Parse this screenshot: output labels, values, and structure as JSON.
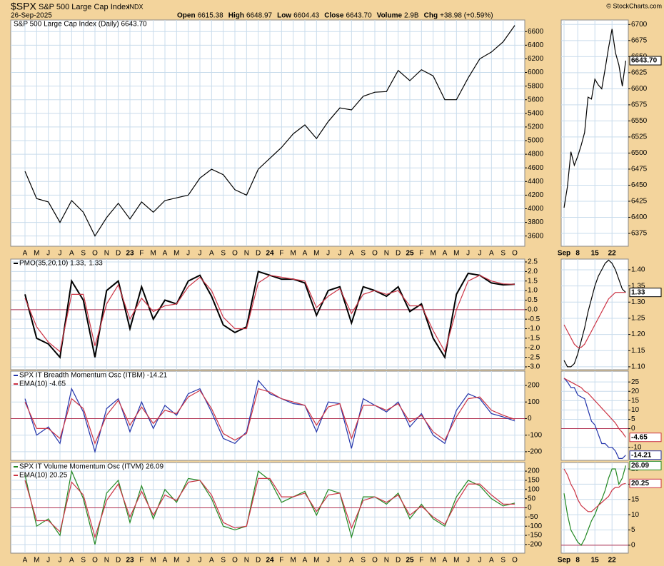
{
  "header": {
    "symbol": "$SPX",
    "name": "S&P 500 Large Cap Index",
    "exchange": "INDX",
    "date": "26-Sep-2025",
    "quote": [
      [
        "Open",
        "6615.38"
      ],
      [
        "High",
        "6648.97"
      ],
      [
        "Low",
        "6604.43"
      ],
      [
        "Close",
        "6643.70"
      ],
      [
        "Volume",
        "2.9B"
      ],
      [
        "Chg",
        "+38.98 (+0.59%)"
      ]
    ],
    "credit": "© StockCharts.com"
  },
  "chart_data": [
    {
      "type": "line",
      "grid": true,
      "categories": [
        "A",
        "M",
        "J",
        "J",
        "A",
        "S",
        "O",
        "N",
        "D",
        "23",
        "F",
        "M",
        "A",
        "M",
        "J",
        "J",
        "A",
        "S",
        "O",
        "N",
        "D",
        "24",
        "F",
        "M",
        "A",
        "M",
        "J",
        "J",
        "A",
        "S",
        "O",
        "N",
        "D",
        "25",
        "F",
        "M",
        "A",
        "M",
        "J",
        "J",
        "A",
        "S",
        "O"
      ],
      "series": [
        {
          "name": "S&P 500 Large Cap Index (Daily) 6643.70",
          "color": "#000000",
          "values": [
            4550,
            4150,
            4100,
            3800,
            4120,
            3950,
            3600,
            3870,
            4080,
            3850,
            4100,
            3950,
            4120,
            4160,
            4200,
            4450,
            4580,
            4500,
            4280,
            4200,
            4580,
            4740,
            4900,
            5100,
            5230,
            5030,
            5280,
            5480,
            5450,
            5650,
            5710,
            5720,
            6030,
            5880,
            6040,
            5950,
            5600,
            5600,
            5920,
            6200,
            6300,
            6450,
            6690
          ]
        }
      ],
      "ylim": [
        3450,
        6770
      ],
      "yticks": [
        3600,
        3800,
        4000,
        4200,
        4400,
        4600,
        4800,
        5000,
        5200,
        5400,
        5600,
        5800,
        6000,
        6200,
        6400,
        6600
      ]
    },
    {
      "type": "line",
      "grid": true,
      "categories": [
        "Sep",
        null,
        null,
        null,
        "8",
        null,
        null,
        null,
        null,
        "15",
        null,
        null,
        null,
        null,
        "22",
        null,
        null,
        null,
        null
      ],
      "series": [
        {
          "color": "#000000",
          "values": [
            6415,
            6448,
            6502,
            6481,
            6495,
            6512,
            6532,
            6587,
            6584,
            6615,
            6606,
            6600,
            6631,
            6664,
            6693,
            6656,
            6637,
            6604,
            6643.7
          ],
          "value_labels": [
            null,
            null,
            null,
            null,
            null,
            null,
            null,
            null,
            null,
            null,
            null,
            null,
            null,
            null,
            null,
            null,
            null,
            null,
            "6643.70"
          ]
        }
      ],
      "ylim": [
        6355,
        6707
      ],
      "yticks": [
        6375,
        6400,
        6425,
        6450,
        6475,
        6500,
        6525,
        6550,
        6575,
        6600,
        6625,
        6650,
        6675,
        6700
      ]
    },
    {
      "type": "line",
      "grid": true,
      "series": [
        {
          "name": "PMO(35,20,10) 1.33,",
          "color": "#000000",
          "values": [
            0.8,
            -1.5,
            -1.8,
            -2.5,
            1.5,
            0.5,
            -2.5,
            1.0,
            1.5,
            -1.0,
            1.2,
            -0.5,
            0.5,
            0.3,
            1.5,
            1.8,
            0.7,
            -0.8,
            -1.2,
            -0.9,
            2.0,
            1.8,
            1.6,
            1.6,
            1.4,
            -0.3,
            1.0,
            1.2,
            -0.7,
            1.2,
            1.0,
            0.7,
            1.2,
            -0.1,
            0.3,
            -1.5,
            -2.5,
            0.8,
            1.9,
            1.8,
            1.4,
            1.3,
            1.33
          ]
        },
        {
          "name": "1.33",
          "color": "#cc3344",
          "values": [
            0.6,
            -0.9,
            -1.7,
            -2.2,
            0.8,
            0.8,
            -1.9,
            0.3,
            1.3,
            -0.5,
            0.6,
            -0.1,
            0.2,
            0.3,
            1.2,
            1.7,
            1.0,
            -0.4,
            -1.0,
            -1.0,
            1.4,
            1.8,
            1.7,
            1.6,
            1.5,
            0.1,
            0.7,
            1.1,
            -0.2,
            0.8,
            1.0,
            0.8,
            1.0,
            0.2,
            0.2,
            -1.1,
            -2.2,
            0.0,
            1.5,
            1.8,
            1.5,
            1.35,
            1.33
          ]
        }
      ],
      "ylim": [
        -3.15,
        2.65
      ],
      "yticks": [
        {
          "value": -3,
          "label": "-3.0"
        },
        -2.5,
        {
          "value": -2,
          "label": "-2.0"
        },
        -1.5,
        {
          "value": -1,
          "label": "-1.0"
        },
        -0.5,
        {
          "value": 0,
          "label": "0.0"
        },
        0.5,
        {
          "value": 1,
          "label": "1.0"
        },
        1.5,
        {
          "value": 2,
          "label": "2.0"
        },
        2.5
      ]
    },
    {
      "type": "line",
      "grid": true,
      "series": [
        {
          "color": "#000000",
          "values": [
            1.12,
            1.1,
            1.1,
            1.11,
            1.14,
            1.18,
            1.22,
            1.27,
            1.31,
            1.35,
            1.38,
            1.4,
            1.42,
            1.43,
            1.42,
            1.4,
            1.37,
            1.34,
            1.33
          ],
          "value_labels": [
            null,
            null,
            null,
            null,
            null,
            null,
            null,
            null,
            null,
            null,
            null,
            null,
            null,
            null,
            null,
            null,
            null,
            null,
            "1.33"
          ]
        },
        {
          "color": "#cc3344",
          "values": [
            1.23,
            1.21,
            1.19,
            1.17,
            1.16,
            1.16,
            1.17,
            1.19,
            1.21,
            1.23,
            1.25,
            1.27,
            1.29,
            1.31,
            1.32,
            1.33,
            1.33,
            1.33,
            1.33
          ]
        }
      ],
      "ylim": [
        1.091,
        1.433
      ],
      "yticks": [
        {
          "value": 1.1,
          "label": "1.10"
        },
        1.15,
        {
          "value": 1.2,
          "label": "1.20"
        },
        1.25,
        {
          "value": 1.3,
          "label": "1.30"
        },
        1.35,
        {
          "value": 1.4,
          "label": "1.40"
        }
      ]
    },
    {
      "type": "line",
      "grid": true,
      "series": [
        {
          "name": "SPX IT Breadth Momentum Osc (ITBM) -14.21",
          "color": "#2233aa",
          "values": [
            120,
            -100,
            -50,
            -150,
            180,
            40,
            -200,
            60,
            120,
            -80,
            100,
            -60,
            80,
            20,
            150,
            180,
            40,
            -120,
            -150,
            -80,
            230,
            150,
            120,
            90,
            80,
            -80,
            100,
            90,
            -180,
            120,
            80,
            40,
            100,
            -50,
            30,
            -100,
            -150,
            50,
            150,
            120,
            30,
            10,
            -14.21
          ]
        },
        {
          "name": "EMA(10) -4.65",
          "color": "#cc3344",
          "values": [
            100,
            -60,
            -60,
            -120,
            120,
            60,
            -150,
            20,
            110,
            -40,
            70,
            -30,
            50,
            30,
            130,
            170,
            60,
            -90,
            -130,
            -90,
            180,
            160,
            120,
            100,
            80,
            -40,
            70,
            90,
            -120,
            80,
            80,
            50,
            90,
            -20,
            20,
            -80,
            -130,
            10,
            120,
            130,
            50,
            20,
            -4.65
          ]
        }
      ],
      "ylim": [
        -252,
        286
      ],
      "yticks": [
        -200,
        -100,
        0,
        100,
        200
      ]
    },
    {
      "type": "line",
      "grid": true,
      "series": [
        {
          "color": "#2233aa",
          "values": [
            27,
            25,
            22,
            22,
            18,
            17,
            16,
            10,
            4,
            2,
            -3,
            -8,
            -8,
            -10,
            -10,
            -12,
            -16,
            -16,
            -14.21
          ],
          "value_labels": [
            null,
            null,
            null,
            null,
            null,
            null,
            null,
            null,
            null,
            null,
            null,
            null,
            null,
            null,
            null,
            null,
            null,
            null,
            "-14.21"
          ]
        },
        {
          "color": "#cc3344",
          "values": [
            27,
            26,
            25,
            24,
            23,
            22,
            20,
            19,
            17,
            15,
            13,
            11,
            9,
            7,
            5,
            3,
            0,
            -2,
            -4.65
          ],
          "value_labels": [
            null,
            null,
            null,
            null,
            null,
            null,
            null,
            null,
            null,
            null,
            null,
            null,
            null,
            null,
            null,
            null,
            null,
            null,
            "-4.65"
          ]
        }
      ],
      "ylim": [
        -17,
        30.8
      ],
      "yticks": [
        -10,
        0,
        5,
        10,
        15,
        20,
        25
      ]
    },
    {
      "type": "line",
      "grid": true,
      "categories": [
        "A",
        "M",
        "J",
        "J",
        "A",
        "S",
        "O",
        "N",
        "D",
        "23",
        "F",
        "M",
        "A",
        "M",
        "J",
        "J",
        "A",
        "S",
        "O",
        "N",
        "D",
        "24",
        "F",
        "M",
        "A",
        "M",
        "J",
        "J",
        "A",
        "S",
        "O",
        "N",
        "D",
        "25",
        "F",
        "M",
        "A",
        "M",
        "J",
        "J",
        "A",
        "S",
        "O"
      ],
      "series": [
        {
          "name": "SPX IT Volume Momentum Osc (ITVM) 26.09",
          "color": "#228822",
          "values": [
            180,
            -100,
            -60,
            -150,
            200,
            50,
            -200,
            80,
            150,
            -80,
            120,
            -60,
            100,
            30,
            160,
            150,
            50,
            -100,
            -120,
            -100,
            200,
            150,
            30,
            60,
            90,
            -40,
            100,
            80,
            -160,
            60,
            60,
            20,
            80,
            -60,
            20,
            -60,
            -100,
            60,
            150,
            120,
            50,
            10,
            26.09
          ]
        },
        {
          "name": "EMA(10) 20.25",
          "color": "#cc3344",
          "values": [
            150,
            -70,
            -70,
            -130,
            140,
            70,
            -160,
            40,
            130,
            -50,
            90,
            -40,
            70,
            40,
            140,
            150,
            70,
            -80,
            -110,
            -100,
            160,
            160,
            60,
            60,
            80,
            -20,
            70,
            80,
            -110,
            40,
            60,
            30,
            70,
            -40,
            10,
            -50,
            -90,
            30,
            130,
            130,
            70,
            20,
            20.25
          ]
        }
      ],
      "ylim": [
        -247,
        247
      ],
      "yticks": [
        -200,
        -150,
        -100,
        -50,
        0,
        50,
        100,
        150,
        200
      ]
    },
    {
      "type": "line",
      "grid": true,
      "categories": [
        "Sep",
        null,
        null,
        null,
        "8",
        null,
        null,
        null,
        null,
        "15",
        null,
        null,
        null,
        null,
        "22",
        null,
        null,
        null,
        null
      ],
      "series": [
        {
          "color": "#228822",
          "values": [
            17,
            10,
            5,
            3,
            1,
            0,
            2,
            5,
            8,
            10,
            13,
            15,
            18,
            22,
            25,
            25,
            20,
            22,
            26.09
          ],
          "value_labels": [
            null,
            null,
            null,
            null,
            null,
            null,
            null,
            null,
            null,
            null,
            null,
            null,
            null,
            null,
            null,
            null,
            null,
            null,
            "26.09"
          ]
        },
        {
          "color": "#cc3344",
          "values": [
            25,
            23,
            20,
            18,
            15,
            13,
            12,
            11,
            11,
            12,
            13,
            14,
            15,
            16,
            18,
            19,
            19,
            20,
            20.25
          ],
          "value_labels": [
            null,
            null,
            null,
            null,
            null,
            null,
            null,
            null,
            null,
            null,
            null,
            null,
            null,
            null,
            null,
            null,
            null,
            null,
            "20.25"
          ]
        }
      ],
      "ylim": [
        -2.6,
        27.1
      ],
      "yticks": [
        0,
        5,
        10,
        15,
        20,
        25
      ]
    }
  ]
}
